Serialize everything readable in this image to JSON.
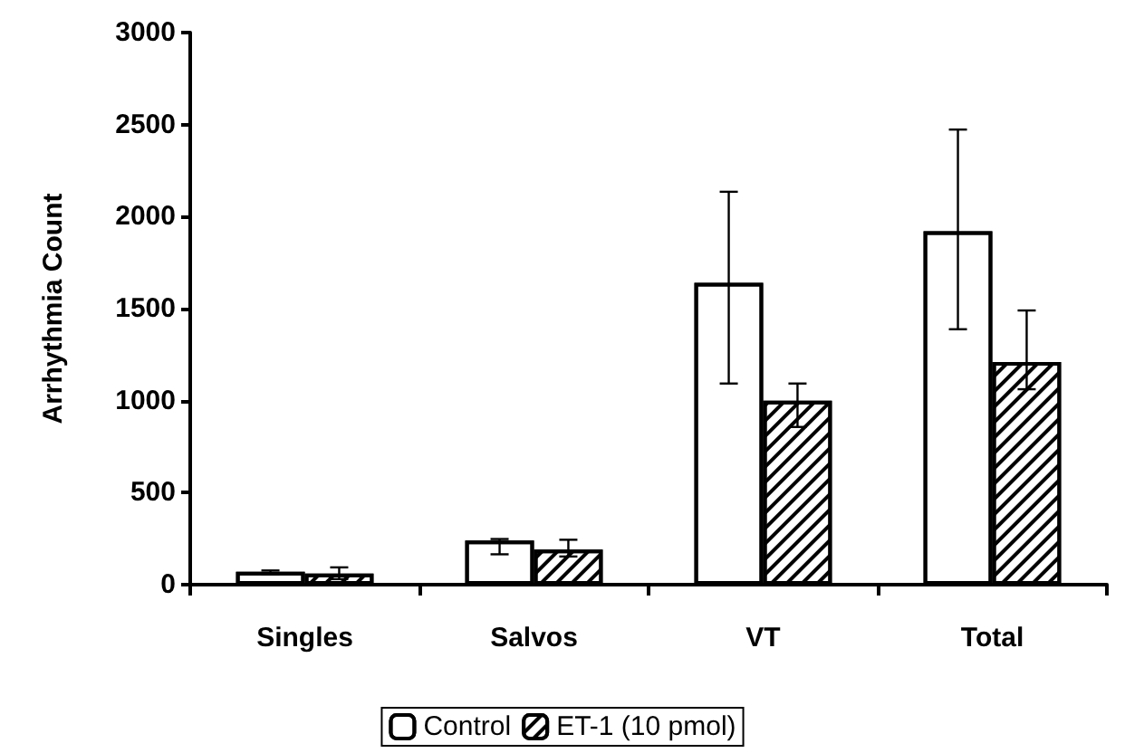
{
  "chart_data": {
    "type": "bar",
    "ylabel": "Arrhythmia Count",
    "categories": [
      "Singles",
      "Salvos",
      "VT",
      "Total"
    ],
    "series": [
      {
        "name": "Control",
        "color": "#ffffff",
        "values": [
          70,
          240,
          1640,
          1920
        ],
        "errors": [
          [
            57,
            77
          ],
          [
            165,
            248
          ],
          [
            1093,
            2135
          ],
          [
            1388,
            2473
          ]
        ]
      },
      {
        "name": "ET-1 (10 pmol)",
        "color": "#000000",
        "values": [
          60,
          190,
          1000,
          1210
        ],
        "errors": [
          [
            30,
            94
          ],
          [
            153,
            244
          ],
          [
            857,
            1093
          ],
          [
            1062,
            1490
          ]
        ]
      }
    ],
    "ylim": [
      0,
      3000
    ],
    "yticks": [
      0,
      500,
      1000,
      1500,
      2000,
      2500,
      3000
    ],
    "grid": false,
    "legend": "bottom"
  }
}
